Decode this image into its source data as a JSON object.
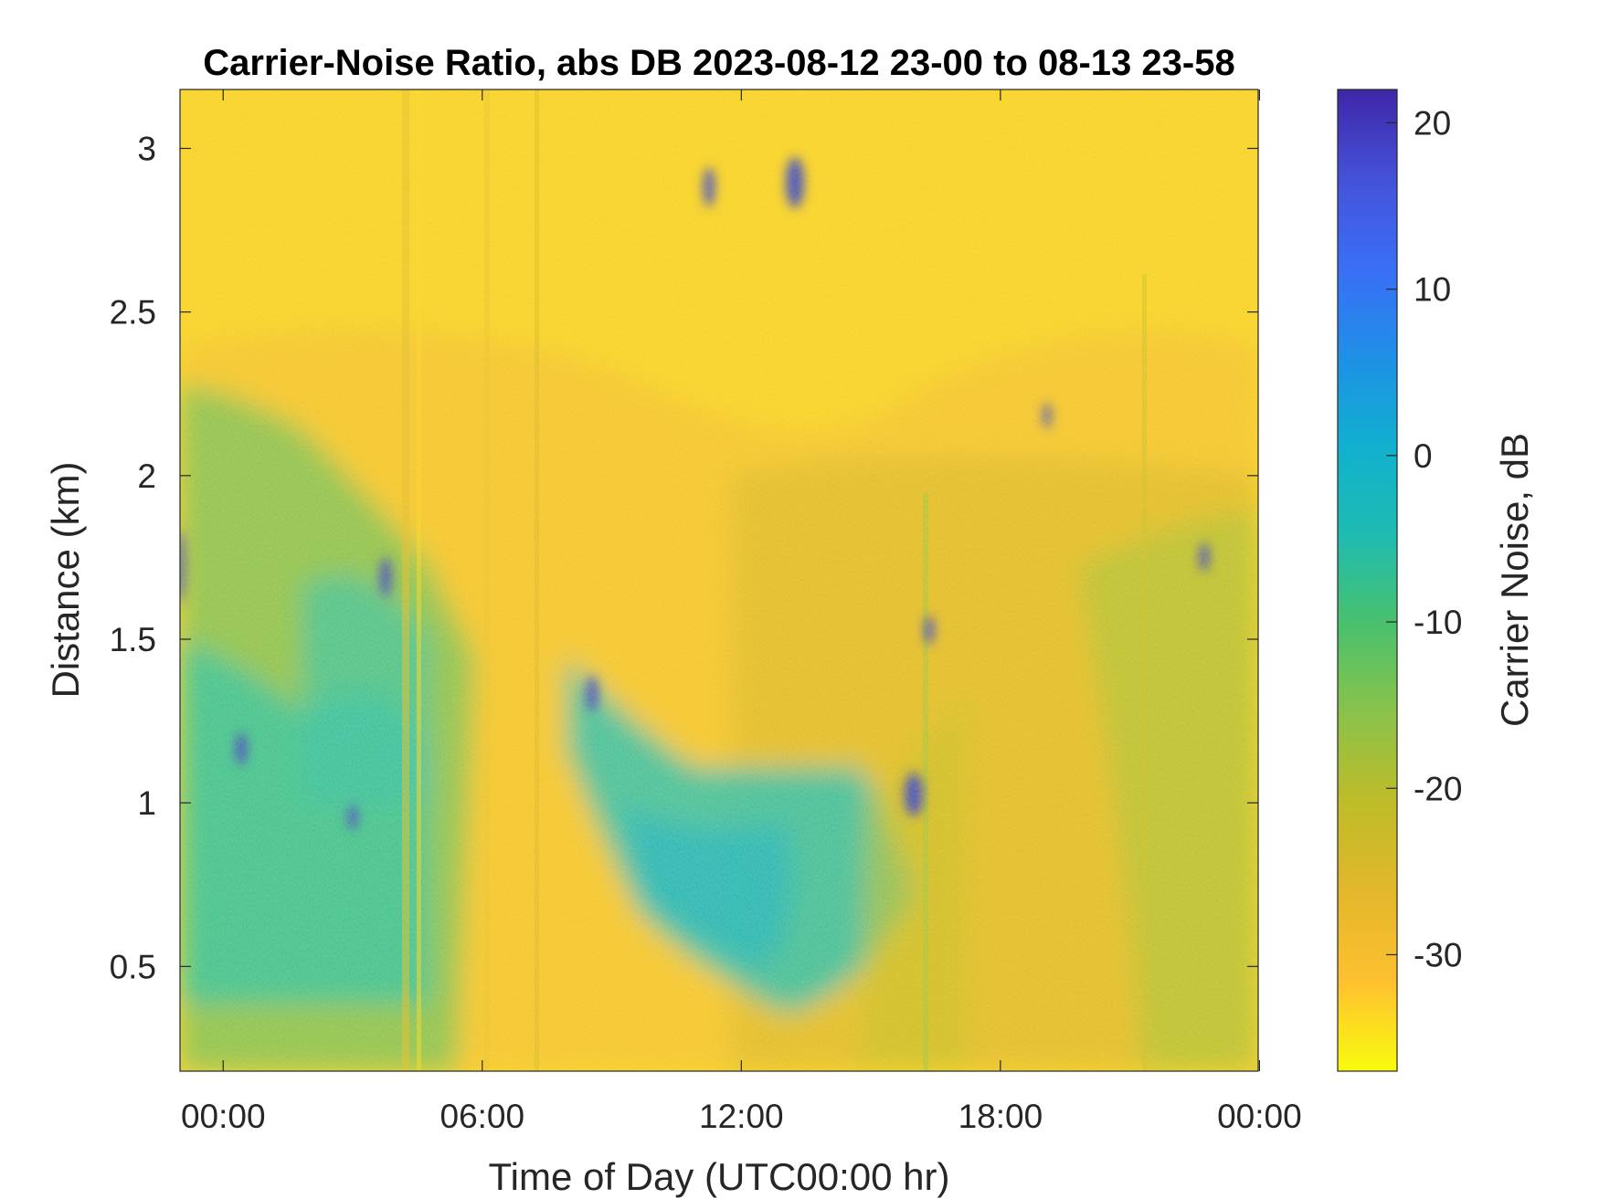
{
  "chart_data": {
    "type": "heatmap",
    "title": "Carrier-Noise Ratio, abs DB 2023-08-12 23-00 to 08-13 23-58",
    "xlabel": "Time of Day (UTC00:00 hr)",
    "ylabel": "Distance (km)",
    "x_ticks": [
      {
        "value": 0,
        "label": "00:00"
      },
      {
        "value": 6,
        "label": "06:00"
      },
      {
        "value": 12,
        "label": "12:00"
      },
      {
        "value": 18,
        "label": "18:00"
      },
      {
        "value": 24,
        "label": "00:00"
      }
    ],
    "y_ticks": [
      {
        "value": 0.5,
        "label": "0.5"
      },
      {
        "value": 1,
        "label": "1"
      },
      {
        "value": 1.5,
        "label": "1.5"
      },
      {
        "value": 2,
        "label": "2"
      },
      {
        "value": 2.5,
        "label": "2.5"
      },
      {
        "value": 3,
        "label": "3"
      }
    ],
    "xlim": [
      -1,
      23.97
    ],
    "ylim": [
      0.18,
      3.18
    ],
    "colorbar": {
      "label": "Carrier Noise, dB",
      "clim": [
        -37,
        22
      ],
      "ticks": [
        {
          "value": 20,
          "label": "20"
        },
        {
          "value": 10,
          "label": "10"
        },
        {
          "value": 0,
          "label": "0"
        },
        {
          "value": -10,
          "label": "-10"
        },
        {
          "value": -20,
          "label": "-20"
        },
        {
          "value": -30,
          "label": "-30"
        }
      ],
      "colormap": [
        "#f9fb0e",
        "#fec130",
        "#e3b72b",
        "#bfbc29",
        "#8bc24a",
        "#4ac16d",
        "#1fbcb0",
        "#11b0cf",
        "#1f90e6",
        "#3a6ef7",
        "#4552d8",
        "#3e26a8"
      ]
    },
    "description_colors": {
      "far_range": "#f8d524",
      "near_range": "#2ec5a8",
      "strong_return": "#4040c8"
    }
  }
}
